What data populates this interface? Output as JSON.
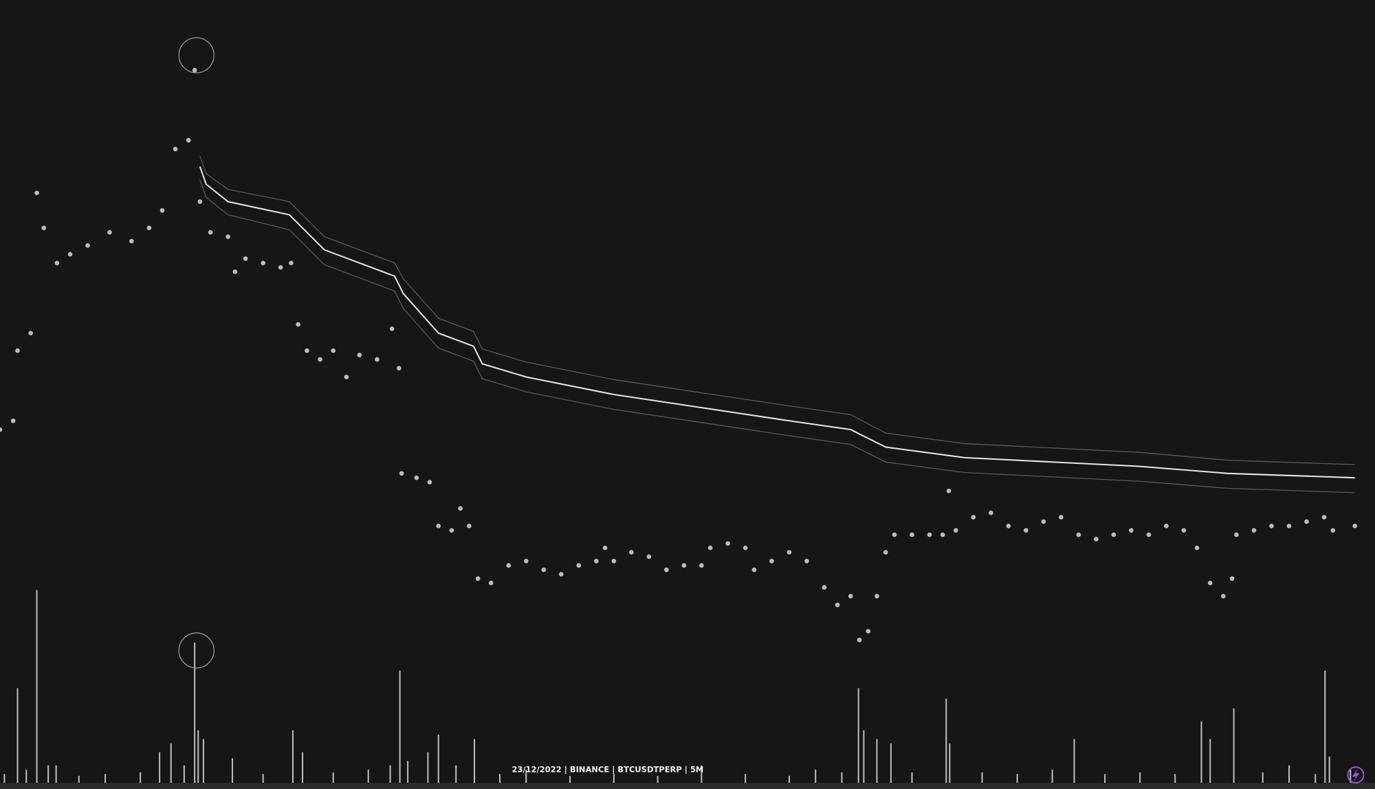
{
  "chart_data": [
    {
      "type": "scatter",
      "title": "23/12/2022 | BINANCE | BTCUSDTPERP | 5M",
      "color": "#d9d9d9",
      "xlim": [
        0,
        1568
      ],
      "ylim": [
        0,
        900
      ],
      "x": [
        0,
        15,
        20,
        35,
        42,
        50,
        65,
        80,
        100,
        125,
        150,
        170,
        185,
        200,
        215,
        222,
        228,
        240,
        260,
        268,
        280,
        300,
        320,
        332,
        340,
        350,
        365,
        380,
        395,
        410,
        430,
        447,
        455,
        458,
        475,
        490,
        500,
        515,
        525,
        535,
        545,
        560,
        580,
        600,
        620,
        640,
        660,
        680,
        690,
        700,
        720,
        740,
        760,
        780,
        800,
        810,
        830,
        850,
        860,
        880,
        900,
        920,
        940,
        955,
        970,
        980,
        990,
        1000,
        1010,
        1020,
        1040,
        1060,
        1075,
        1082,
        1090,
        1110,
        1130,
        1150,
        1170,
        1190,
        1210,
        1230,
        1250,
        1270,
        1290,
        1310,
        1330,
        1350,
        1365,
        1380,
        1395,
        1405,
        1410,
        1430,
        1450,
        1470,
        1490,
        1510,
        1520,
        1545
      ],
      "values": [
        410,
        420,
        500,
        520,
        680,
        640,
        600,
        610,
        620,
        635,
        625,
        640,
        660,
        730,
        740,
        820,
        670,
        635,
        630,
        590,
        605,
        600,
        595,
        600,
        530,
        500,
        490,
        500,
        470,
        495,
        490,
        525,
        480,
        360,
        355,
        350,
        300,
        295,
        320,
        300,
        240,
        235,
        255,
        260,
        250,
        245,
        255,
        260,
        275,
        260,
        270,
        265,
        250,
        255,
        255,
        275,
        280,
        275,
        250,
        260,
        270,
        260,
        230,
        210,
        220,
        170,
        180,
        220,
        270,
        290,
        290,
        290,
        290,
        340,
        295,
        310,
        315,
        300,
        295,
        305,
        310,
        290,
        285,
        290,
        295,
        290,
        300,
        295,
        275,
        235,
        220,
        240,
        290,
        295,
        300,
        300,
        305,
        310,
        295,
        300
      ]
    },
    {
      "type": "line",
      "xlim": [
        0,
        1568
      ],
      "ylim": [
        0,
        900
      ],
      "x": [
        228,
        235,
        260,
        330,
        370,
        450,
        460,
        500,
        540,
        550,
        600,
        700,
        800,
        900,
        970,
        1010,
        1100,
        1200,
        1300,
        1400,
        1545
      ],
      "series": [
        {
          "color": "#5a5a5a",
          "values": [
            722,
            702,
            684,
            670,
            630,
            600,
            582,
            537,
            522,
            502,
            487,
            467,
            452,
            437,
            427,
            406,
            394,
            389,
            384,
            375,
            370
          ]
        },
        {
          "color": "#e6e6e6",
          "values": [
            710,
            690,
            670,
            655,
            615,
            585,
            565,
            520,
            505,
            485,
            470,
            450,
            435,
            420,
            410,
            390,
            378,
            373,
            368,
            360,
            355
          ]
        },
        {
          "color": "#5a5a5a",
          "values": [
            695,
            675,
            655,
            638,
            598,
            568,
            548,
            503,
            488,
            468,
            453,
            433,
            418,
            403,
            393,
            373,
            361,
            356,
            351,
            343,
            338
          ]
        }
      ]
    },
    {
      "type": "bar",
      "color": "#bdbdbd",
      "xlim": [
        0,
        1568
      ],
      "ylim": [
        0,
        250
      ],
      "x": [
        5,
        20,
        30,
        42,
        55,
        64,
        90,
        120,
        160,
        182,
        195,
        210,
        222,
        226,
        232,
        265,
        300,
        334,
        345,
        380,
        420,
        445,
        456,
        465,
        488,
        500,
        520,
        541,
        570,
        600,
        650,
        700,
        750,
        800,
        850,
        900,
        930,
        960,
        979,
        985,
        1000,
        1016,
        1040,
        1079,
        1083,
        1120,
        1160,
        1200,
        1225,
        1260,
        1300,
        1340,
        1370,
        1380,
        1407,
        1440,
        1470,
        1500,
        1511,
        1516,
        1540
      ],
      "values": [
        10,
        108,
        15,
        220,
        20,
        20,
        8,
        10,
        12,
        35,
        45,
        20,
        160,
        60,
        50,
        28,
        10,
        60,
        35,
        12,
        15,
        20,
        128,
        25,
        35,
        55,
        20,
        50,
        10,
        15,
        8,
        10,
        8,
        20,
        10,
        8,
        15,
        12,
        108,
        60,
        50,
        45,
        12,
        96,
        45,
        12,
        10,
        15,
        50,
        10,
        12,
        10,
        70,
        50,
        85,
        12,
        20,
        10,
        128,
        30,
        15
      ]
    }
  ]
}
